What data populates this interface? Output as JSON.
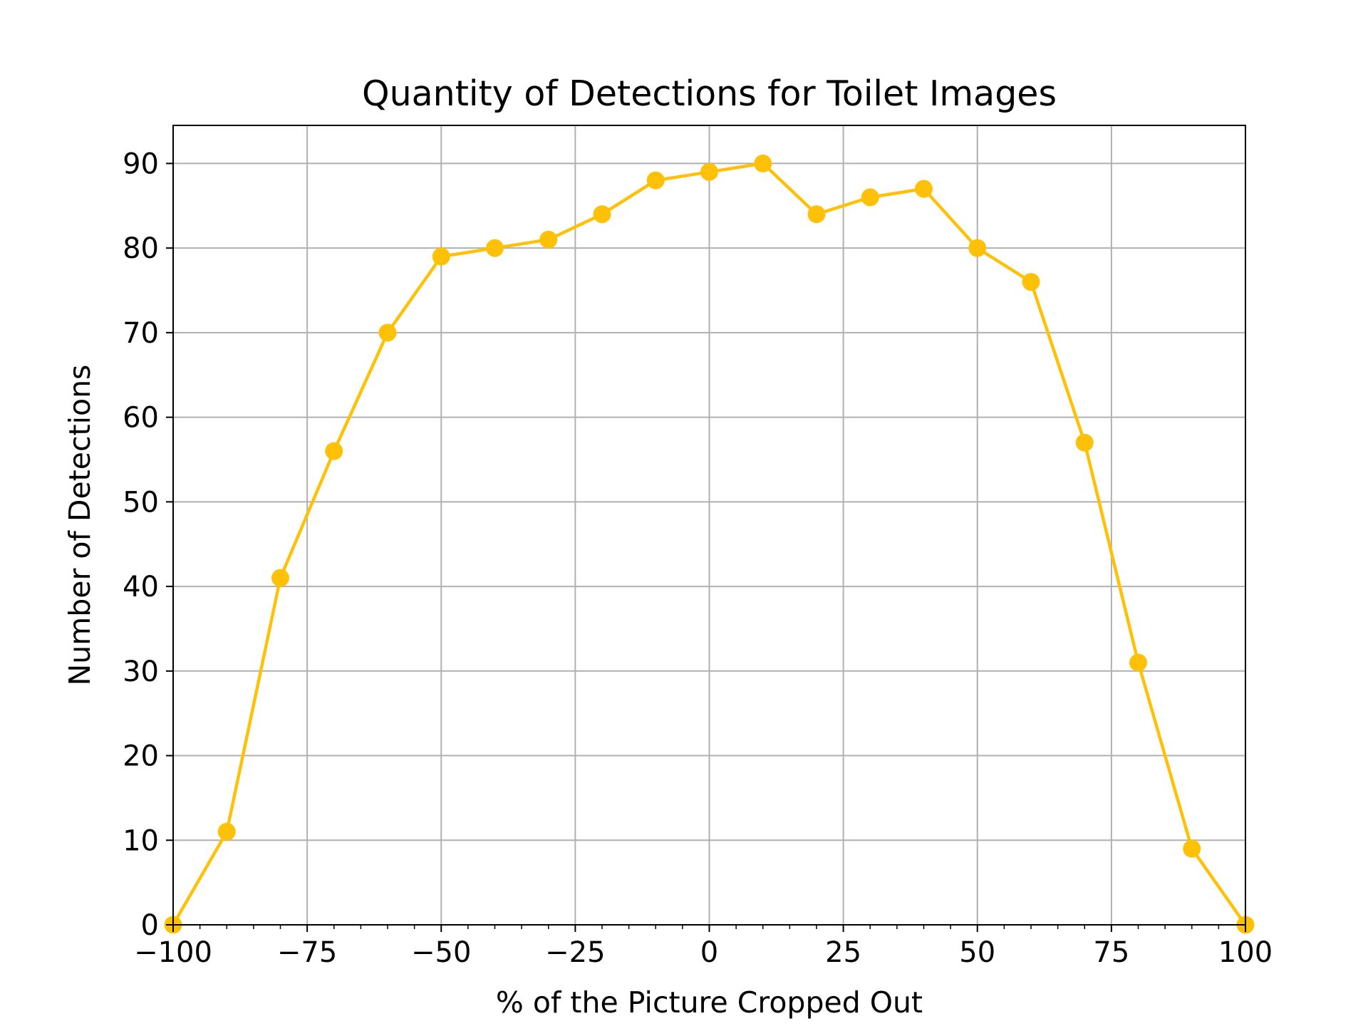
{
  "chart_data": {
    "type": "line",
    "title": "Quantity of Detections for Toilet Images",
    "xlabel": "% of the Picture Cropped Out",
    "ylabel": "Number of Detections",
    "xlim": [
      -100,
      100
    ],
    "ylim": [
      0,
      94.5
    ],
    "grid": true,
    "x_ticks": [
      -100,
      -75,
      -50,
      -25,
      0,
      25,
      50,
      75,
      100
    ],
    "x_tick_labels": [
      "−100",
      "−75",
      "−50",
      "−25",
      "0",
      "25",
      "50",
      "75",
      "100"
    ],
    "y_ticks": [
      0,
      10,
      20,
      30,
      40,
      50,
      60,
      70,
      80,
      90
    ],
    "y_tick_labels": [
      "0",
      "10",
      "20",
      "30",
      "40",
      "50",
      "60",
      "70",
      "80",
      "90"
    ],
    "series": [
      {
        "color": "#ffc107",
        "marker": "circle",
        "x": [
          -100,
          -90,
          -80,
          -70,
          -60,
          -50,
          -40,
          -30,
          -20,
          -10,
          0,
          10,
          20,
          30,
          40,
          50,
          60,
          70,
          80,
          90,
          100
        ],
        "y": [
          0,
          11,
          41,
          56,
          70,
          79,
          80,
          81,
          84,
          88,
          89,
          90,
          84,
          86,
          87,
          80,
          76,
          57,
          31,
          9,
          0
        ]
      }
    ]
  }
}
